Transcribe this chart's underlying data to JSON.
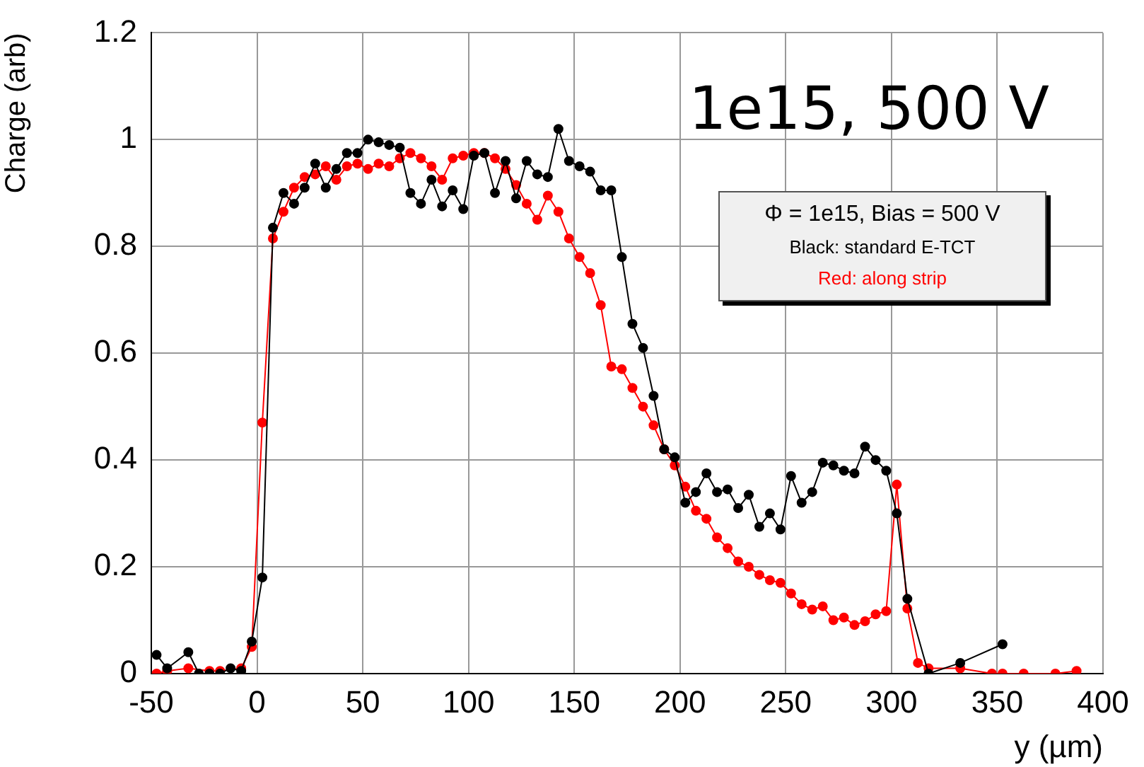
{
  "chart_data": {
    "type": "line",
    "xlabel": "y (µm)",
    "ylabel": "Charge (arb)",
    "xlim": [
      -50,
      400
    ],
    "xticks": [
      -50,
      0,
      50,
      100,
      150,
      200,
      250,
      300,
      350,
      400
    ],
    "ylim": [
      0,
      1.2
    ],
    "yticks": [
      0,
      0.2,
      0.4,
      0.6,
      0.8,
      1,
      1.2
    ],
    "grid": true,
    "marker": "circle",
    "line_style": "solid",
    "annotations": [
      "1e15, 500 V",
      "Φ = 1e15, Bias = 500 V",
      "Black: standard E-TCT",
      "Red: along strip"
    ],
    "series": [
      {
        "color": "#000000",
        "x": [
          -47.5,
          -42.5,
          -32.5,
          -27.5,
          -22.5,
          -17.5,
          -12.5,
          -7.5,
          -2.5,
          2.5,
          7.5,
          12.5,
          17.5,
          22.5,
          27.5,
          32.5,
          37.5,
          42.5,
          47.5,
          52.5,
          57.5,
          62.5,
          67.5,
          72.5,
          77.5,
          82.5,
          87.5,
          92.5,
          97.5,
          102.5,
          107.5,
          112.5,
          117.5,
          122.5,
          127.5,
          132.5,
          137.5,
          142.5,
          147.5,
          152.5,
          157.5,
          162.5,
          167.5,
          172.5,
          177.5,
          182.5,
          187.5,
          192.5,
          197.5,
          202.5,
          207.5,
          212.5,
          217.5,
          222.5,
          227.5,
          232.5,
          237.5,
          242.5,
          247.5,
          252.5,
          257.5,
          262.5,
          267.5,
          272.5,
          277.5,
          282.5,
          287.5,
          292.5,
          297.5,
          302.5,
          307.5,
          317.5,
          332.5,
          352.5
        ],
        "values": [
          0.035,
          0.01,
          0.04,
          0,
          0,
          0,
          0.01,
          0.005,
          0.06,
          0.18,
          0.835,
          0.9,
          0.88,
          0.91,
          0.955,
          0.91,
          0.945,
          0.975,
          0.975,
          1.0,
          0.995,
          0.99,
          0.985,
          0.9,
          0.88,
          0.925,
          0.875,
          0.905,
          0.87,
          0.97,
          0.975,
          0.9,
          0.96,
          0.89,
          0.96,
          0.935,
          0.93,
          1.02,
          0.96,
          0.95,
          0.94,
          0.905,
          0.905,
          0.78,
          0.655,
          0.61,
          0.52,
          0.42,
          0.405,
          0.32,
          0.34,
          0.375,
          0.34,
          0.345,
          0.31,
          0.335,
          0.275,
          0.3,
          0.27,
          0.37,
          0.32,
          0.34,
          0.395,
          0.39,
          0.38,
          0.375,
          0.425,
          0.4,
          0.38,
          0.3,
          0.14,
          0,
          0.02,
          0.055
        ]
      },
      {
        "color": "#ff0000",
        "x": [
          -47.5,
          -42.5,
          -32.5,
          -22.5,
          -17.5,
          -7.5,
          -2.5,
          2.5,
          7.5,
          12.5,
          17.5,
          22.5,
          27.5,
          32.5,
          37.5,
          42.5,
          47.5,
          52.5,
          57.5,
          62.5,
          67.5,
          72.5,
          77.5,
          82.5,
          87.5,
          92.5,
          97.5,
          102.5,
          107.5,
          112.5,
          117.5,
          122.5,
          127.5,
          132.5,
          137.5,
          142.5,
          147.5,
          152.5,
          157.5,
          162.5,
          167.5,
          172.5,
          177.5,
          182.5,
          187.5,
          192.5,
          197.5,
          202.5,
          207.5,
          212.5,
          217.5,
          222.5,
          227.5,
          232.5,
          237.5,
          242.5,
          247.5,
          252.5,
          257.5,
          262.5,
          267.5,
          272.5,
          277.5,
          282.5,
          287.5,
          292.5,
          297.5,
          302.5,
          307.5,
          312.5,
          317.5,
          332.5,
          347.5,
          352.5,
          362.5,
          377.5,
          387.5
        ],
        "values": [
          0,
          0.005,
          0.01,
          0.005,
          0.005,
          0.01,
          0.05,
          0.47,
          0.815,
          0.865,
          0.91,
          0.93,
          0.935,
          0.95,
          0.925,
          0.95,
          0.955,
          0.945,
          0.955,
          0.95,
          0.965,
          0.975,
          0.965,
          0.95,
          0.925,
          0.965,
          0.97,
          0.975,
          0.975,
          0.965,
          0.945,
          0.915,
          0.88,
          0.85,
          0.895,
          0.865,
          0.815,
          0.78,
          0.75,
          0.69,
          0.575,
          0.57,
          0.535,
          0.5,
          0.465,
          0.42,
          0.39,
          0.35,
          0.305,
          0.29,
          0.255,
          0.235,
          0.21,
          0.2,
          0.185,
          0.175,
          0.17,
          0.15,
          0.13,
          0.12,
          0.126,
          0.1,
          0.105,
          0.091,
          0.098,
          0.111,
          0.117,
          0.354,
          0.122,
          0.02,
          0.01,
          0.01,
          0,
          0,
          0,
          0,
          0.005
        ]
      }
    ]
  }
}
